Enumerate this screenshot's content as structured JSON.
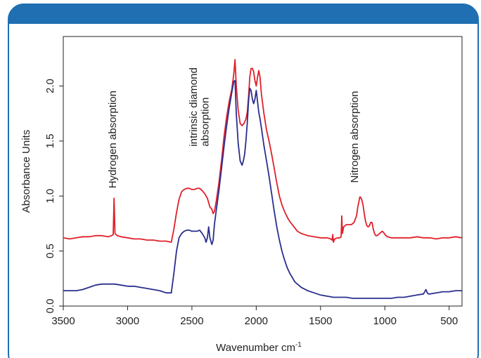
{
  "chart_data": {
    "type": "line",
    "title": "",
    "xlabel": "Wavenumber cm",
    "xlabel_superscript": "-1",
    "ylabel": "Absorbance Units",
    "xlim": [
      3500,
      400
    ],
    "ylim": [
      0.0,
      2.45
    ],
    "x_ticks": [
      3500,
      3000,
      2500,
      2000,
      1500,
      1000,
      500
    ],
    "x_tick_labels": [
      "3500",
      "3000",
      "2500",
      "2000",
      "1500",
      "1000",
      "500"
    ],
    "y_ticks": [
      0.0,
      0.5,
      1.0,
      1.5,
      2.0
    ],
    "y_tick_labels": [
      "0.0",
      "0.5",
      "1.0",
      "1.5",
      "2.0"
    ],
    "grid": false,
    "annotations": [
      {
        "text": "Hydrogen absorption",
        "x": 3090,
        "y": 1.07
      },
      {
        "text": "intrinsic diamond",
        "x": 2460,
        "y": 1.45
      },
      {
        "text": "absorption",
        "x": 2370,
        "y": 1.45
      },
      {
        "text": "Nitrogen absorption",
        "x": 1210,
        "y": 1.12
      }
    ],
    "series": [
      {
        "color": "#e0202a",
        "x": [
          3500,
          3450,
          3400,
          3350,
          3300,
          3250,
          3200,
          3150,
          3125,
          3112,
          3105,
          3098,
          3080,
          3050,
          3000,
          2950,
          2900,
          2850,
          2800,
          2750,
          2700,
          2660,
          2640,
          2620,
          2600,
          2580,
          2560,
          2540,
          2520,
          2500,
          2480,
          2460,
          2440,
          2420,
          2400,
          2380,
          2360,
          2345,
          2335,
          2325,
          2310,
          2290,
          2270,
          2250,
          2230,
          2210,
          2190,
          2175,
          2165,
          2155,
          2140,
          2125,
          2110,
          2095,
          2080,
          2070,
          2060,
          2050,
          2040,
          2030,
          2020,
          2010,
          2000,
          1990,
          1980,
          1970,
          1960,
          1940,
          1920,
          1900,
          1880,
          1860,
          1840,
          1820,
          1800,
          1780,
          1760,
          1740,
          1720,
          1700,
          1680,
          1650,
          1600,
          1550,
          1500,
          1450,
          1420,
          1410,
          1405,
          1400,
          1390,
          1370,
          1350,
          1340,
          1335,
          1330,
          1320,
          1300,
          1280,
          1260,
          1240,
          1220,
          1210,
          1200,
          1195,
          1190,
          1180,
          1170,
          1160,
          1150,
          1140,
          1130,
          1120,
          1110,
          1100,
          1090,
          1080,
          1070,
          1060,
          1050,
          1040,
          1030,
          1020,
          1010,
          1000,
          980,
          950,
          900,
          850,
          800,
          750,
          700,
          650,
          600,
          550,
          500,
          450,
          400
        ],
        "values": [
          0.62,
          0.61,
          0.62,
          0.63,
          0.63,
          0.64,
          0.64,
          0.63,
          0.64,
          0.65,
          0.98,
          0.66,
          0.64,
          0.63,
          0.62,
          0.61,
          0.61,
          0.6,
          0.6,
          0.59,
          0.59,
          0.58,
          0.7,
          0.85,
          0.97,
          1.04,
          1.06,
          1.07,
          1.07,
          1.06,
          1.06,
          1.07,
          1.07,
          1.05,
          1.02,
          0.98,
          0.9,
          0.88,
          0.84,
          0.86,
          0.96,
          1.12,
          1.32,
          1.54,
          1.72,
          1.86,
          1.97,
          2.1,
          2.24,
          2.0,
          1.78,
          1.66,
          1.64,
          1.66,
          1.7,
          1.76,
          1.9,
          2.08,
          2.16,
          2.16,
          2.13,
          2.05,
          2.0,
          2.08,
          2.14,
          2.08,
          1.93,
          1.75,
          1.6,
          1.5,
          1.38,
          1.25,
          1.12,
          1.0,
          0.92,
          0.86,
          0.81,
          0.77,
          0.74,
          0.71,
          0.68,
          0.66,
          0.64,
          0.63,
          0.62,
          0.62,
          0.61,
          0.6,
          0.65,
          0.58,
          0.61,
          0.62,
          0.62,
          0.63,
          0.82,
          0.66,
          0.72,
          0.74,
          0.74,
          0.74,
          0.76,
          0.82,
          0.9,
          0.96,
          0.99,
          0.99,
          0.97,
          0.92,
          0.84,
          0.77,
          0.73,
          0.72,
          0.73,
          0.76,
          0.76,
          0.7,
          0.66,
          0.64,
          0.64,
          0.65,
          0.66,
          0.67,
          0.68,
          0.67,
          0.65,
          0.63,
          0.62,
          0.62,
          0.62,
          0.62,
          0.63,
          0.62,
          0.62,
          0.61,
          0.62,
          0.62,
          0.63,
          0.62
        ]
      },
      {
        "color": "#2a2e8e",
        "x": [
          3500,
          3450,
          3400,
          3350,
          3300,
          3250,
          3200,
          3150,
          3100,
          3050,
          3000,
          2950,
          2900,
          2850,
          2800,
          2750,
          2700,
          2660,
          2640,
          2620,
          2600,
          2580,
          2560,
          2540,
          2520,
          2500,
          2480,
          2460,
          2440,
          2420,
          2400,
          2390,
          2380,
          2370,
          2360,
          2350,
          2345,
          2335,
          2325,
          2310,
          2290,
          2270,
          2250,
          2230,
          2210,
          2190,
          2175,
          2165,
          2155,
          2140,
          2125,
          2110,
          2100,
          2090,
          2080,
          2070,
          2060,
          2050,
          2040,
          2030,
          2020,
          2010,
          2000,
          1990,
          1980,
          1970,
          1960,
          1950,
          1940,
          1920,
          1900,
          1880,
          1860,
          1840,
          1820,
          1800,
          1780,
          1760,
          1740,
          1720,
          1700,
          1680,
          1650,
          1600,
          1550,
          1500,
          1450,
          1400,
          1350,
          1300,
          1250,
          1200,
          1150,
          1100,
          1050,
          1000,
          950,
          900,
          850,
          800,
          750,
          700,
          690,
          680,
          670,
          660,
          650,
          600,
          550,
          500,
          450,
          400
        ],
        "values": [
          0.14,
          0.14,
          0.14,
          0.15,
          0.17,
          0.19,
          0.2,
          0.2,
          0.2,
          0.19,
          0.18,
          0.18,
          0.17,
          0.16,
          0.15,
          0.14,
          0.12,
          0.12,
          0.3,
          0.5,
          0.62,
          0.66,
          0.68,
          0.69,
          0.69,
          0.68,
          0.68,
          0.68,
          0.69,
          0.66,
          0.62,
          0.58,
          0.62,
          0.72,
          0.62,
          0.58,
          0.56,
          0.6,
          0.74,
          0.88,
          1.05,
          1.25,
          1.45,
          1.64,
          1.8,
          1.94,
          2.04,
          2.05,
          1.75,
          1.48,
          1.32,
          1.28,
          1.32,
          1.38,
          1.5,
          1.66,
          1.86,
          1.98,
          1.96,
          1.88,
          1.84,
          1.88,
          1.96,
          1.86,
          1.76,
          1.7,
          1.62,
          1.54,
          1.46,
          1.32,
          1.18,
          1.02,
          0.86,
          0.72,
          0.6,
          0.5,
          0.42,
          0.35,
          0.3,
          0.26,
          0.22,
          0.2,
          0.17,
          0.14,
          0.12,
          0.1,
          0.09,
          0.08,
          0.08,
          0.08,
          0.07,
          0.07,
          0.07,
          0.07,
          0.07,
          0.07,
          0.07,
          0.08,
          0.08,
          0.09,
          0.1,
          0.11,
          0.13,
          0.15,
          0.12,
          0.11,
          0.11,
          0.12,
          0.13,
          0.13,
          0.14,
          0.14
        ]
      }
    ]
  }
}
